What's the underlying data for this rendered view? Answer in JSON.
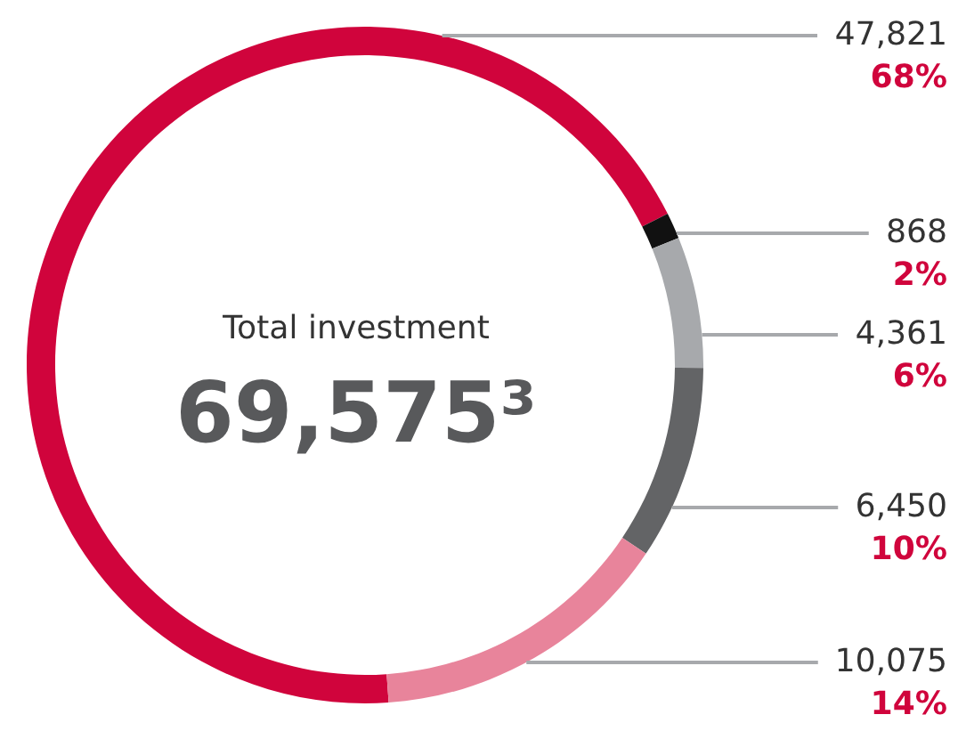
{
  "chart_data": {
    "type": "donut",
    "categories": [
      null,
      null,
      null,
      null,
      null
    ],
    "values": [
      47821,
      868,
      4361,
      6450,
      10075
    ],
    "colors": [
      "#d0043c",
      "#111111",
      "#a7a9ac",
      "#636466",
      "#e8849b"
    ],
    "value_labels": [
      "47,821",
      "868",
      "4,361",
      "6,450",
      "10,075"
    ],
    "annotations": [
      "Total investment",
      "69,575³",
      "68%",
      "2%",
      "6%",
      "10%",
      "14%"
    ],
    "legend": false
  }
}
